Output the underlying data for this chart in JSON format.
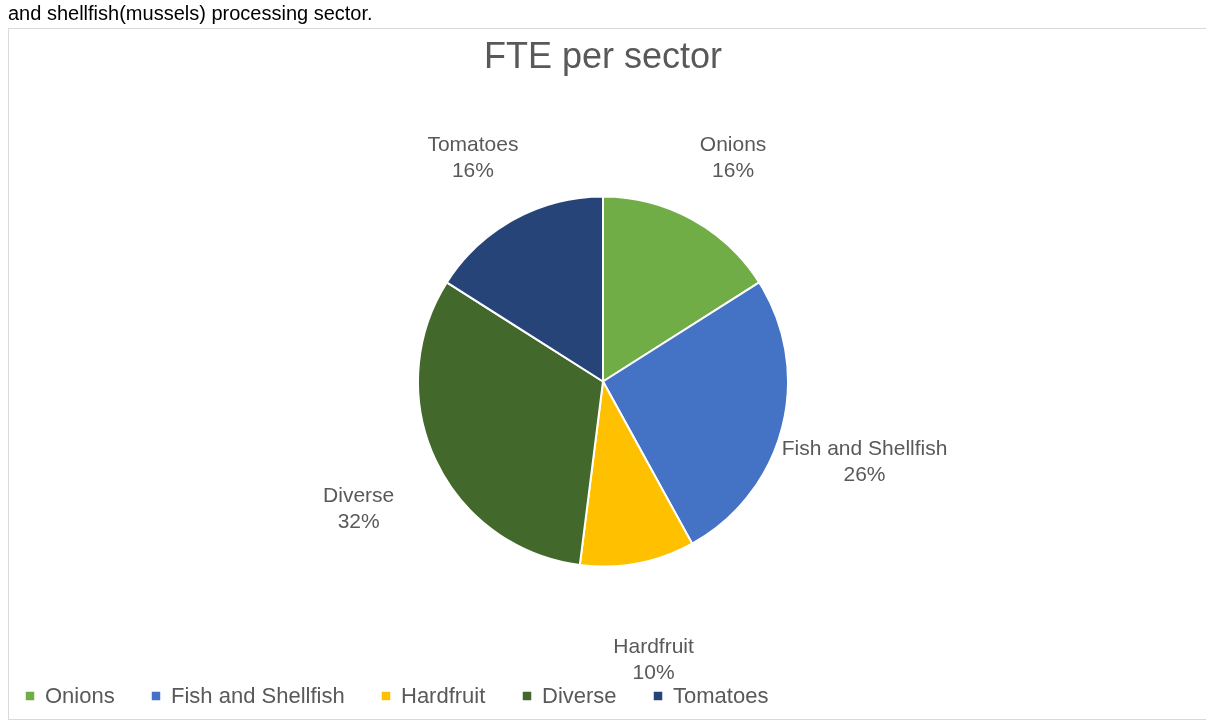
{
  "chart_data": {
    "type": "pie",
    "title": "FTE per sector",
    "categories": [
      "Onions",
      "Fish and Shellfish",
      "Hardfruit",
      "Diverse",
      "Tomatoes"
    ],
    "values": [
      16,
      26,
      10,
      32,
      16
    ],
    "value_labels": [
      "16%",
      "26%",
      "10%",
      "32%",
      "16%"
    ],
    "colors": [
      "#70ad47",
      "#4472c4",
      "#ffc000",
      "#43682b",
      "#264478"
    ],
    "legend": "bottom",
    "annotations": [
      "and shellfish(mussels) processing sector."
    ]
  }
}
